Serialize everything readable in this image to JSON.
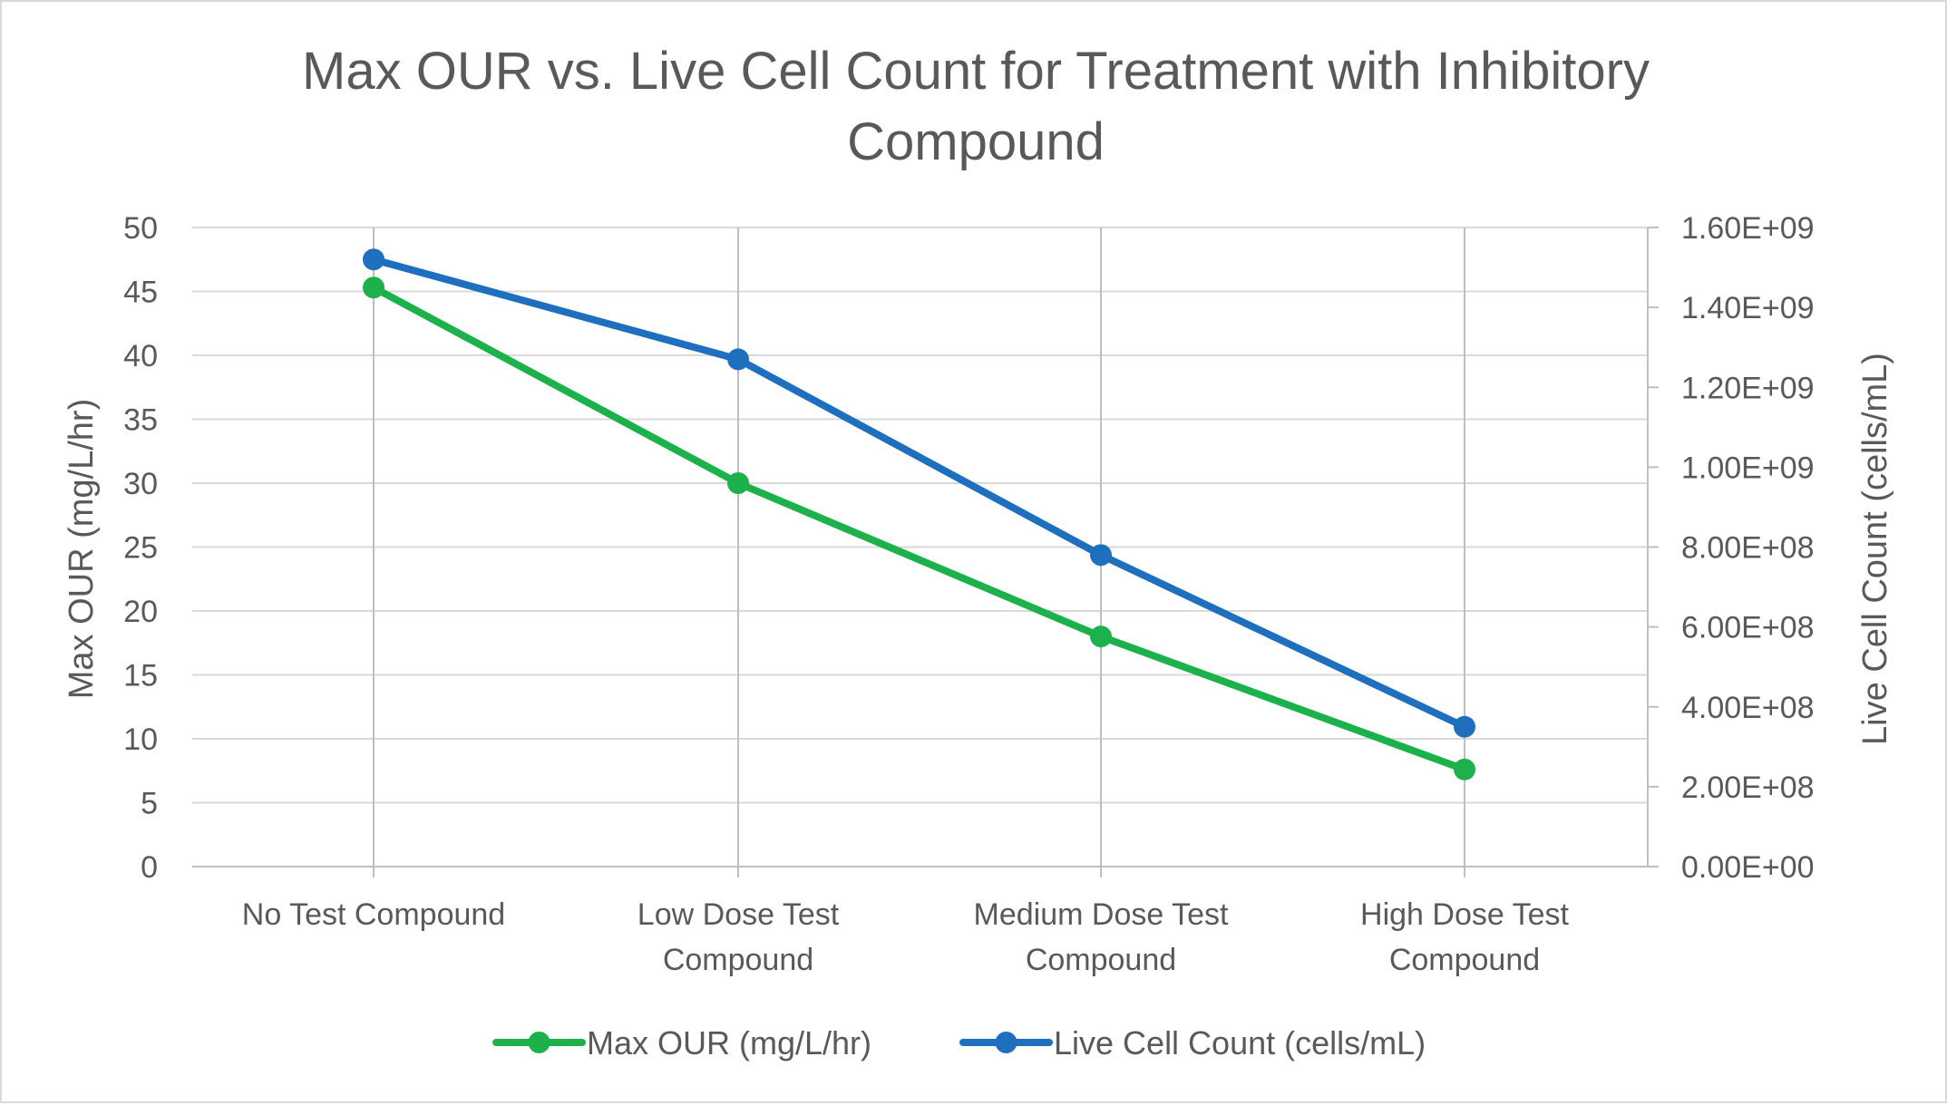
{
  "chart_data": {
    "type": "line",
    "title": "Max OUR vs. Live Cell Count for Treatment with Inhibitory Compound",
    "title_lines": [
      "Max OUR vs. Live Cell Count for Treatment with Inhibitory",
      "Compound"
    ],
    "categories": [
      "No Test Compound",
      "Low Dose Test Compound",
      "Medium Dose Test Compound",
      "High Dose Test Compound"
    ],
    "category_lines": [
      [
        "No Test Compound"
      ],
      [
        "Low Dose Test",
        "Compound"
      ],
      [
        "Medium Dose Test",
        "Compound"
      ],
      [
        "High Dose Test",
        "Compound"
      ]
    ],
    "ylabel": "Max OUR (mg/L/hr)",
    "y2label": "Live Cell Count (cells/mL)",
    "ylim": [
      0,
      50
    ],
    "y_ticks": [
      0,
      5,
      10,
      15,
      20,
      25,
      30,
      35,
      40,
      45,
      50
    ],
    "y_tick_labels": [
      "0",
      "5",
      "10",
      "15",
      "20",
      "25",
      "30",
      "35",
      "40",
      "45",
      "50"
    ],
    "y2lim": [
      0,
      1600000000
    ],
    "y2_ticks": [
      0,
      200000000,
      400000000,
      600000000,
      800000000,
      1000000000,
      1200000000,
      1400000000,
      1600000000
    ],
    "y2_tick_labels": [
      "0.00E+00",
      "2.00E+08",
      "4.00E+08",
      "6.00E+08",
      "8.00E+08",
      "1.00E+09",
      "1.20E+09",
      "1.40E+09",
      "1.60E+09"
    ],
    "grid": "horizontal and vertical",
    "legend_position": "bottom",
    "series": [
      {
        "name": "Max OUR (mg/L/hr)",
        "axis": "left",
        "color": "#1db14b",
        "values": [
          45.3,
          30.0,
          18.0,
          7.6
        ]
      },
      {
        "name": "Live Cell Count (cells/mL)",
        "axis": "right",
        "color": "#1f6fbf",
        "values": [
          1520000000,
          1270000000,
          780000000,
          350000000
        ]
      }
    ]
  }
}
